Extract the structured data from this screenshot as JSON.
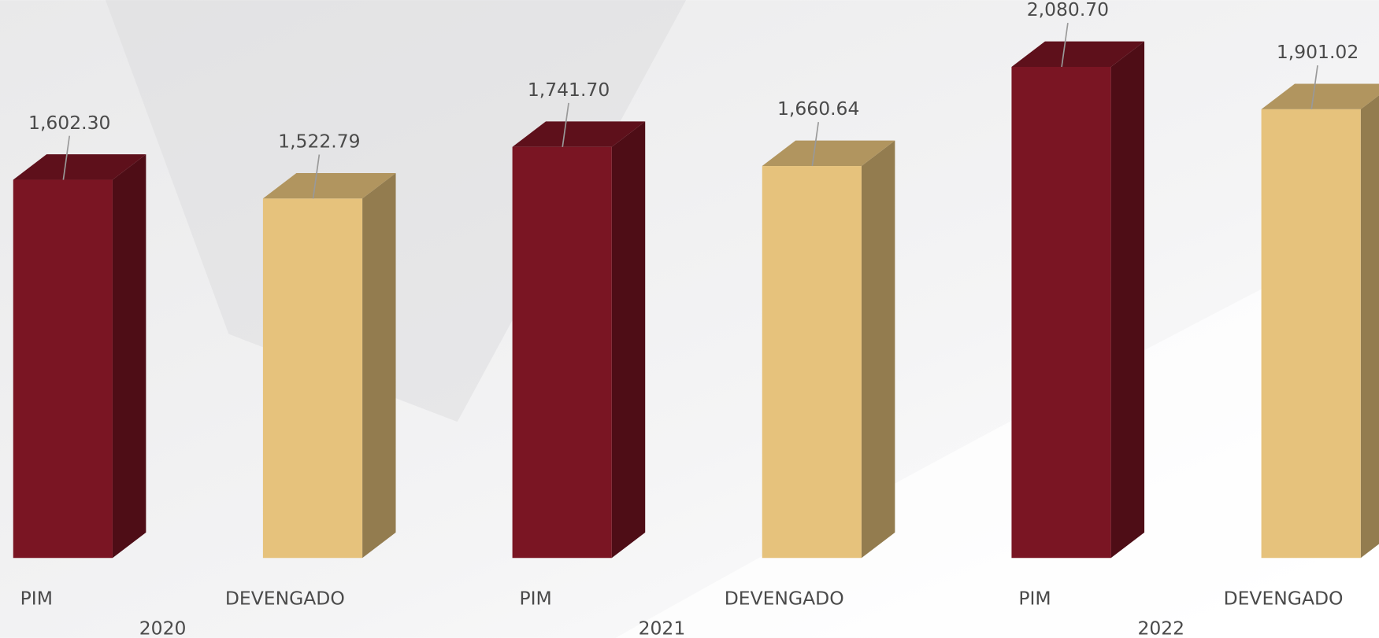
{
  "chart_data": {
    "type": "bar3d",
    "groups": [
      "2020",
      "2021",
      "2022"
    ],
    "series": [
      {
        "name": "PIM",
        "color": "#7a1523",
        "values": [
          1602.3,
          1741.7,
          2080.7
        ],
        "value_labels": [
          "1,602.30",
          "1,741.70",
          "2,080.70"
        ]
      },
      {
        "name": "DEVENGADO",
        "color": "#e6c27c",
        "values": [
          1522.79,
          1660.64,
          1901.02
        ],
        "value_labels": [
          "1,522.79",
          "1,660.64",
          "1,901.02"
        ]
      }
    ]
  }
}
